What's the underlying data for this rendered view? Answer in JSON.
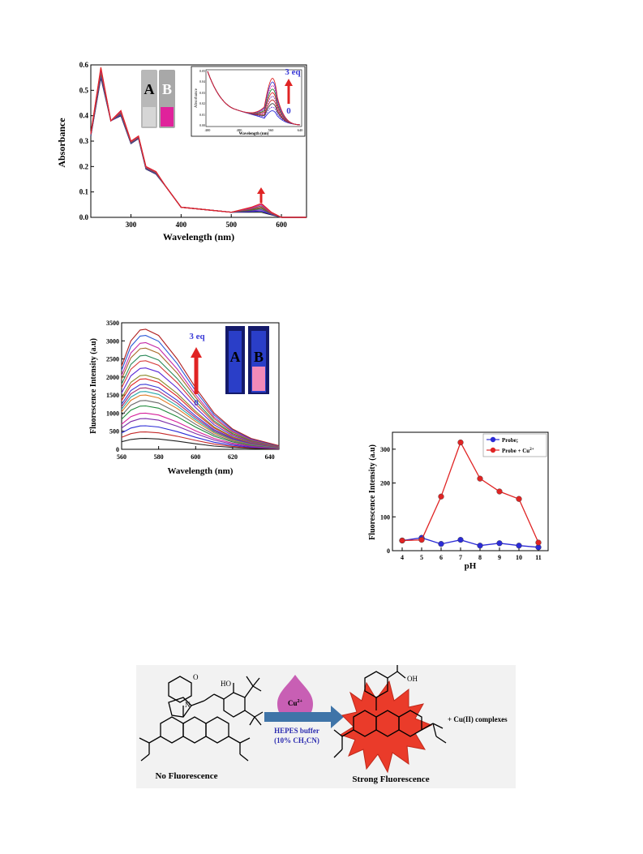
{
  "figure_a": {
    "ylabel": "Absorbance",
    "xlabel": "Wavelength (nm)",
    "yticks": [
      "0.0",
      "0.1",
      "0.2",
      "0.3",
      "0.4",
      "0.5",
      "0.6"
    ],
    "xticks": [
      "300",
      "400",
      "500",
      "600"
    ],
    "vial_a": "A",
    "vial_b": "B",
    "inset": {
      "ylabel": "Absorbance",
      "xlabel": "Wavelength (nm)",
      "yticks": [
        "0.00",
        "0.01",
        "0.02",
        "0.03",
        "0.04",
        "0.05"
      ],
      "xticks": [
        "400",
        "480",
        "560",
        "640"
      ],
      "top_label": "3 eq",
      "bottom_label": "0"
    }
  },
  "figure_b": {
    "ylabel": "Fluorescence Intensity (a.u)",
    "xlabel": "Wavelength (nm)",
    "yticks": [
      "0",
      "500",
      "1000",
      "1500",
      "2000",
      "2500",
      "3000",
      "3500"
    ],
    "xticks": [
      "560",
      "580",
      "600",
      "620",
      "640"
    ],
    "top_label": "3 eq",
    "bottom_label": "0",
    "vial_a": "A",
    "vial_b": "B"
  },
  "figure_c": {
    "ylabel": "Fluorescence Intensity (a.u)",
    "xlabel": "pH",
    "yticks": [
      "0",
      "100",
      "200",
      "300"
    ],
    "legend": [
      "Probe;",
      "Probe + Cu"
    ],
    "legend_sup": "2+",
    "colors": {
      "probe": "#2b2bd6",
      "probe_cu": "#e02424"
    }
  },
  "scheme": {
    "ion": "Cu",
    "ion_sup": "2+",
    "buffer_line1": "HEPES buffer",
    "buffer_line2": "(10% CH",
    "buffer_line2_sub": "3",
    "buffer_line2_end": "CN)",
    "products": "+ Cu(II) complexes",
    "left_caption": "No Fluorescence",
    "right_caption": "Strong Fluorescence",
    "ho_label": "HO",
    "o_label": "O",
    "oh_label": "OH",
    "n_label": "N"
  },
  "chart_data": [
    {
      "type": "line",
      "title": "",
      "xlabel": "Wavelength (nm)",
      "ylabel": "Absorbance",
      "xlim": [
        220,
        650
      ],
      "ylim": [
        0,
        0.6
      ],
      "x": [
        220,
        240,
        260,
        280,
        300,
        315,
        330,
        350,
        370,
        400,
        450,
        500,
        540,
        560,
        580,
        600,
        650
      ],
      "series": [
        {
          "values": [
            0.32,
            0.55,
            0.38,
            0.4,
            0.29,
            0.31,
            0.19,
            0.17,
            0.12,
            0.04,
            0.03,
            0.02,
            0.02,
            0.02,
            0.01,
            0.0,
            0.0
          ]
        },
        {
          "values": [
            0.33,
            0.59,
            0.38,
            0.42,
            0.3,
            0.32,
            0.2,
            0.18,
            0.12,
            0.04,
            0.03,
            0.02,
            0.04,
            0.055,
            0.02,
            0.0,
            0.0
          ]
        }
      ]
    },
    {
      "type": "line",
      "title": "",
      "xlabel": "Wavelength (nm)",
      "ylabel": "Fluorescence Intensity (a.u)",
      "xlim": [
        560,
        645
      ],
      "ylim": [
        0,
        3500
      ],
      "x": [
        560,
        565,
        570,
        573,
        580,
        590,
        600,
        610,
        620,
        630,
        645
      ],
      "series": [
        {
          "values": [
            2300,
            3000,
            3300,
            3320,
            3150,
            2500,
            1700,
            1000,
            560,
            300,
            100
          ]
        },
        {
          "values": [
            1400,
            1800,
            1980,
            2000,
            1900,
            1500,
            1050,
            620,
            350,
            190,
            70
          ]
        },
        {
          "values": [
            700,
            900,
            990,
            1000,
            950,
            760,
            520,
            310,
            170,
            90,
            30
          ]
        },
        {
          "values": [
            200,
            270,
            300,
            300,
            285,
            230,
            160,
            95,
            50,
            28,
            10
          ]
        }
      ]
    },
    {
      "type": "line",
      "title": "",
      "xlabel": "pH",
      "ylabel": "Fluorescence Intensity (a.u)",
      "ylim": [
        0,
        350
      ],
      "x": [
        4,
        5,
        6,
        7,
        8,
        9,
        10,
        11
      ],
      "series": [
        {
          "name": "Probe;",
          "values": [
            30,
            38,
            20,
            32,
            15,
            22,
            15,
            10
          ]
        },
        {
          "name": "Probe + Cu2+",
          "values": [
            30,
            32,
            160,
            320,
            213,
            175,
            153,
            24
          ]
        }
      ]
    }
  ]
}
